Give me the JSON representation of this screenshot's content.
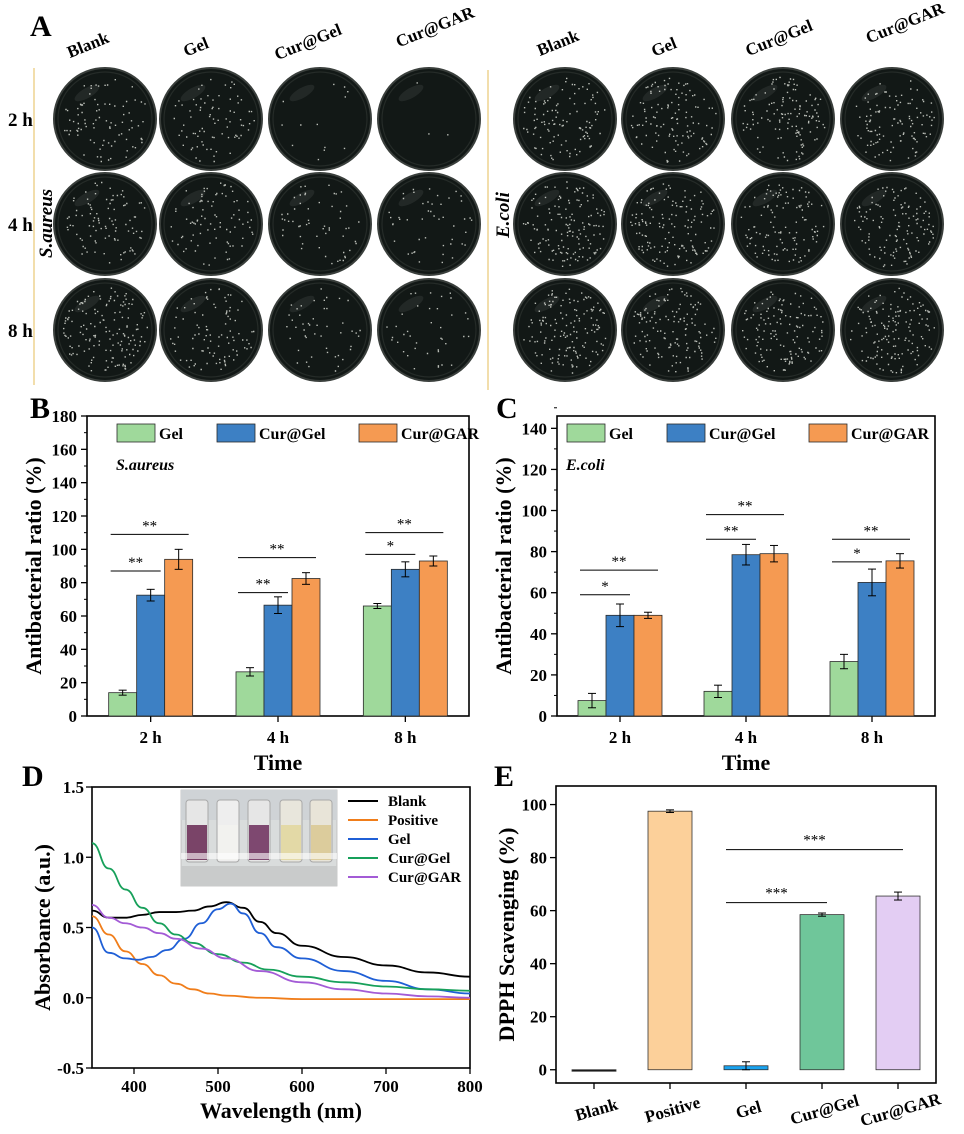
{
  "panel_labels": {
    "a": "A",
    "b": "B",
    "c": "C",
    "d": "D",
    "e": "E"
  },
  "panel_a": {
    "columns": [
      "Blank",
      "Gel",
      "Cur@Gel",
      "Cur@GAR"
    ],
    "rows": [
      "2 h",
      "4 h",
      "8 h"
    ],
    "left_label": "S.aureus",
    "right_label": "E.coli",
    "colony_density_left": [
      [
        0.55,
        0.5,
        0.08,
        0.02
      ],
      [
        0.6,
        0.55,
        0.35,
        0.3
      ],
      [
        0.95,
        0.6,
        0.3,
        0.25
      ]
    ],
    "colony_density_right": [
      [
        0.7,
        0.75,
        0.8,
        0.7
      ],
      [
        0.9,
        0.9,
        0.75,
        0.8
      ],
      [
        0.95,
        0.85,
        0.85,
        0.9
      ]
    ]
  },
  "colors": {
    "gel_green": "#9fd99b",
    "blue": "#3d80c4",
    "orange": "#f59a52",
    "plate": "#141a16"
  },
  "chart_data": [
    {
      "id": "B",
      "type": "bar",
      "title": "S.aureus",
      "xlabel": "Time",
      "ylabel": "Antibacterial ratio (%)",
      "categories": [
        "2 h",
        "4 h",
        "8 h"
      ],
      "ylim": [
        0,
        180
      ],
      "yticks": [
        0,
        20,
        40,
        60,
        80,
        100,
        120,
        140,
        160,
        180
      ],
      "series": [
        {
          "name": "Gel",
          "values": [
            14,
            26.5,
            66
          ],
          "errors": [
            1.5,
            2.5,
            1.5
          ]
        },
        {
          "name": "Cur@Gel",
          "values": [
            72.5,
            66.5,
            88
          ],
          "errors": [
            3.5,
            5,
            4.5
          ]
        },
        {
          "name": "Cur@GAR",
          "values": [
            94,
            82.5,
            93
          ],
          "errors": [
            6,
            3.5,
            3
          ]
        }
      ],
      "significance": [
        {
          "group": 0,
          "from": 0,
          "to": 1,
          "label": "**",
          "y": 87
        },
        {
          "group": 0,
          "from": 0,
          "to": 2,
          "label": "**",
          "y": 109
        },
        {
          "group": 1,
          "from": 0,
          "to": 1,
          "label": "**",
          "y": 74
        },
        {
          "group": 1,
          "from": 0,
          "to": 2,
          "label": "**",
          "y": 95
        },
        {
          "group": 2,
          "from": 0,
          "to": 1,
          "label": "*",
          "y": 97
        },
        {
          "group": 2,
          "from": 0,
          "to": 2,
          "label": "**",
          "y": 110
        }
      ]
    },
    {
      "id": "C",
      "type": "bar",
      "title": "E.coli",
      "xlabel": "Time",
      "ylabel": "Antibacterial ratio (%)",
      "categories": [
        "2 h",
        "4 h",
        "8 h"
      ],
      "ylim": [
        0,
        146
      ],
      "yticks": [
        0,
        20,
        40,
        60,
        80,
        100,
        120,
        140
      ],
      "series": [
        {
          "name": "Gel",
          "values": [
            7.5,
            12,
            26.5
          ],
          "errors": [
            3.5,
            3,
            3.5
          ]
        },
        {
          "name": "Cur@Gel",
          "values": [
            49,
            78.5,
            65
          ],
          "errors": [
            5.5,
            5,
            6.5
          ]
        },
        {
          "name": "Cur@GAR",
          "values": [
            49,
            79,
            75.5
          ],
          "errors": [
            1.5,
            4,
            3.5
          ]
        }
      ],
      "significance": [
        {
          "group": 0,
          "from": 0,
          "to": 1,
          "label": "*",
          "y": 59
        },
        {
          "group": 0,
          "from": 0,
          "to": 2,
          "label": "**",
          "y": 71
        },
        {
          "group": 1,
          "from": 0,
          "to": 1,
          "label": "**",
          "y": 86
        },
        {
          "group": 1,
          "from": 0,
          "to": 2,
          "label": "**",
          "y": 98
        },
        {
          "group": 2,
          "from": 0,
          "to": 1,
          "label": "*",
          "y": 75
        },
        {
          "group": 2,
          "from": 0,
          "to": 2,
          "label": "**",
          "y": 86
        }
      ]
    },
    {
      "id": "D",
      "type": "line",
      "xlabel": "Wavelength (nm)",
      "ylabel": "Absorbance (a.u.)",
      "xlim": [
        350,
        800
      ],
      "ylim": [
        -0.5,
        1.5
      ],
      "xticks": [
        400,
        500,
        600,
        700,
        800
      ],
      "yticks": [
        -0.5,
        0.0,
        0.5,
        1.0,
        1.5
      ],
      "ytick_labels": [
        "-0.5",
        "0.0",
        "0.5",
        "1.0",
        "1.5"
      ],
      "series": [
        {
          "name": "Blank",
          "color": "#000000",
          "x": [
            350,
            370,
            390,
            410,
            430,
            450,
            470,
            490,
            510,
            530,
            550,
            570,
            600,
            650,
            700,
            750,
            800
          ],
          "y": [
            0.62,
            0.57,
            0.57,
            0.59,
            0.61,
            0.61,
            0.62,
            0.65,
            0.68,
            0.64,
            0.54,
            0.46,
            0.37,
            0.29,
            0.23,
            0.18,
            0.15
          ]
        },
        {
          "name": "Positive",
          "color": "#f07d1a",
          "x": [
            350,
            370,
            390,
            410,
            430,
            450,
            470,
            490,
            510,
            550,
            600,
            700,
            800
          ],
          "y": [
            0.58,
            0.45,
            0.33,
            0.24,
            0.16,
            0.1,
            0.06,
            0.03,
            0.015,
            0.0,
            -0.01,
            -0.01,
            -0.01
          ]
        },
        {
          "name": "Gel",
          "color": "#1f5fd6",
          "x": [
            350,
            370,
            390,
            405,
            420,
            440,
            460,
            480,
            500,
            515,
            530,
            550,
            570,
            600,
            650,
            700,
            750,
            800
          ],
          "y": [
            0.5,
            0.32,
            0.28,
            0.27,
            0.29,
            0.34,
            0.42,
            0.53,
            0.63,
            0.67,
            0.6,
            0.46,
            0.36,
            0.28,
            0.19,
            0.12,
            0.06,
            0.03
          ]
        },
        {
          "name": "Cur@Gel",
          "color": "#17a05a",
          "x": [
            350,
            370,
            390,
            410,
            430,
            450,
            470,
            500,
            530,
            560,
            600,
            650,
            700,
            750,
            800
          ],
          "y": [
            1.1,
            0.92,
            0.77,
            0.64,
            0.53,
            0.45,
            0.39,
            0.31,
            0.25,
            0.2,
            0.15,
            0.11,
            0.08,
            0.06,
            0.05
          ]
        },
        {
          "name": "Cur@GAR",
          "color": "#a35bd6",
          "x": [
            350,
            370,
            390,
            410,
            430,
            450,
            480,
            510,
            550,
            600,
            650,
            700,
            750,
            800
          ],
          "y": [
            0.66,
            0.57,
            0.53,
            0.5,
            0.46,
            0.42,
            0.35,
            0.28,
            0.19,
            0.11,
            0.06,
            0.03,
            0.01,
            0.0
          ]
        }
      ],
      "inset": "cuvette photograph (5 tubes)"
    },
    {
      "id": "E",
      "type": "bar",
      "ylabel": "DPPH Scavenging (%)",
      "categories": [
        "Blank",
        "Positive",
        "Gel",
        "Cur@Gel",
        "Cur@GAR"
      ],
      "ylim": [
        -5,
        107
      ],
      "yticks": [
        0,
        20,
        40,
        60,
        80,
        100
      ],
      "values": [
        0,
        97.5,
        1.5,
        58.5,
        65.5
      ],
      "errors": [
        0,
        0.5,
        1.5,
        0.6,
        1.5
      ],
      "colors": [
        "#111111",
        "#fcd09a",
        "#1aa3ef",
        "#6fc69a",
        "#e3cdf3"
      ],
      "significance": [
        {
          "from": 2,
          "to": 3,
          "label": "***",
          "y": 63
        },
        {
          "from": 2,
          "to": 4,
          "label": "***",
          "y": 83
        }
      ]
    }
  ]
}
